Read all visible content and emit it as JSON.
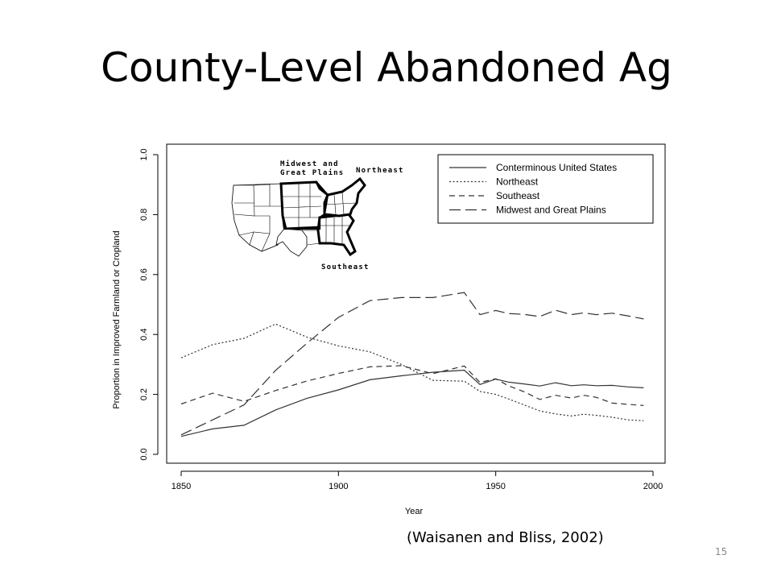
{
  "slide": {
    "title": "County-Level Abandoned Ag",
    "citation": "(Waisanen  and Bliss, 2002)",
    "page_number": "15"
  },
  "map": {
    "labels": [
      "Midwest and",
      "Great Plains",
      "Northeast",
      "Southeast"
    ]
  },
  "chart_data": {
    "type": "line",
    "xlabel": "Year",
    "ylabel": "Proportion in Improved Farmland or Cropland",
    "xlim": [
      1850,
      2000
    ],
    "ylim": [
      0,
      1
    ],
    "x_ticks": [
      "1850",
      "1900",
      "1950",
      "2000"
    ],
    "y_ticks": [
      "0.0",
      "0.2",
      "0.4",
      "0.6",
      "0.8",
      "1.0"
    ],
    "grid": false,
    "legend_position": "top-right",
    "series": [
      {
        "name": "Conterminous United States",
        "style": "solid",
        "x": [
          1850,
          1860,
          1870,
          1880,
          1890,
          1900,
          1910,
          1920,
          1930,
          1940,
          1945,
          1950,
          1954,
          1959,
          1964,
          1969,
          1974,
          1978,
          1982,
          1987,
          1992,
          1997
        ],
        "y": [
          0.06,
          0.085,
          0.097,
          0.148,
          0.187,
          0.215,
          0.249,
          0.262,
          0.274,
          0.281,
          0.233,
          0.251,
          0.241,
          0.235,
          0.228,
          0.239,
          0.229,
          0.232,
          0.229,
          0.23,
          0.225,
          0.222
        ]
      },
      {
        "name": "Northeast",
        "style": "dotted",
        "x": [
          1850,
          1860,
          1870,
          1880,
          1890,
          1900,
          1910,
          1920,
          1930,
          1940,
          1945,
          1950,
          1954,
          1959,
          1964,
          1969,
          1974,
          1978,
          1982,
          1987,
          1992,
          1997
        ],
        "y": [
          0.322,
          0.366,
          0.387,
          0.435,
          0.391,
          0.362,
          0.342,
          0.3,
          0.247,
          0.244,
          0.21,
          0.2,
          0.185,
          0.165,
          0.145,
          0.135,
          0.128,
          0.134,
          0.13,
          0.124,
          0.115,
          0.112
        ]
      },
      {
        "name": "Southeast",
        "style": "dashed",
        "x": [
          1850,
          1860,
          1870,
          1880,
          1890,
          1900,
          1910,
          1920,
          1930,
          1940,
          1945,
          1950,
          1954,
          1959,
          1964,
          1969,
          1974,
          1978,
          1982,
          1987,
          1992,
          1997
        ],
        "y": [
          0.168,
          0.204,
          0.177,
          0.213,
          0.245,
          0.27,
          0.292,
          0.296,
          0.269,
          0.295,
          0.24,
          0.252,
          0.229,
          0.209,
          0.183,
          0.197,
          0.188,
          0.197,
          0.19,
          0.171,
          0.167,
          0.163
        ]
      },
      {
        "name": "Midwest and Great Plains",
        "style": "longdash",
        "x": [
          1850,
          1860,
          1870,
          1880,
          1890,
          1900,
          1910,
          1920,
          1930,
          1940,
          1945,
          1950,
          1954,
          1959,
          1964,
          1969,
          1974,
          1978,
          1982,
          1987,
          1992,
          1997
        ],
        "y": [
          0.065,
          0.115,
          0.165,
          0.28,
          0.371,
          0.457,
          0.513,
          0.523,
          0.523,
          0.54,
          0.466,
          0.48,
          0.47,
          0.467,
          0.46,
          0.481,
          0.466,
          0.472,
          0.466,
          0.471,
          0.462,
          0.452
        ]
      }
    ]
  }
}
